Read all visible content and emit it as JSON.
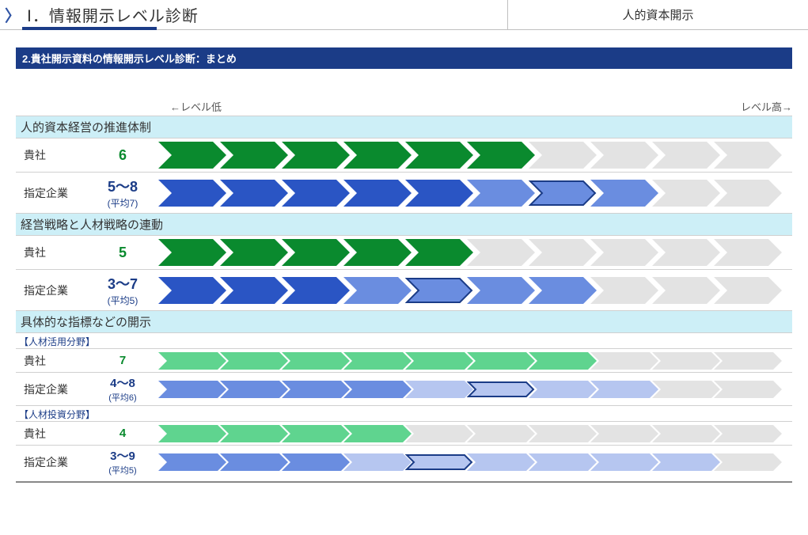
{
  "header": {
    "title": "Ⅰ．情報開示レベル診断",
    "right": "人的資本開示"
  },
  "subheader": "2.貴社開示資料の情報開示レベル診断：まとめ",
  "scale": {
    "low": "←レベル低",
    "high": "レベル高→"
  },
  "labels": {
    "own": "貴社",
    "peer": "指定企業"
  },
  "chart": {
    "segments": 10,
    "colors": {
      "own_value": "#0a8a2e",
      "peer_value": "#1b3c87",
      "green_dark": "#0a8a2e",
      "green_light": "#5fd48f",
      "blue_dark": "#2a55c4",
      "blue_mid": "#6a8de0",
      "blue_light": "#b6c6f0",
      "grey": "#e3e3e3",
      "outline": "#1b3c87"
    }
  },
  "sections": [
    {
      "title": "人的資本経営の推進体制",
      "rows": [
        {
          "kind": "own",
          "value": "6",
          "fill": 6,
          "total": 10,
          "style": "big",
          "palette": "green_dark"
        },
        {
          "kind": "peer",
          "value": "5～8",
          "avg": "(平均7)",
          "min": 5,
          "max": 8,
          "mark": 7,
          "total": 10,
          "style": "big"
        }
      ]
    },
    {
      "title": "経営戦略と人材戦略の連動",
      "rows": [
        {
          "kind": "own",
          "value": "5",
          "fill": 5,
          "total": 10,
          "style": "big",
          "palette": "green_dark"
        },
        {
          "kind": "peer",
          "value": "3～7",
          "avg": "(平均5)",
          "min": 3,
          "max": 7,
          "mark": 5,
          "total": 10,
          "style": "big"
        }
      ]
    },
    {
      "title": "具体的な指標などの開示",
      "groups": [
        {
          "subtitle": "【人材活用分野】",
          "rows": [
            {
              "kind": "own",
              "value": "7",
              "fill": 7,
              "total": 10,
              "style": "small",
              "palette": "green_light"
            },
            {
              "kind": "peer",
              "value": "4～8",
              "avg": "(平均6)",
              "min": 4,
              "max": 8,
              "mark": 6,
              "total": 10,
              "style": "small",
              "palette": "light"
            }
          ]
        },
        {
          "subtitle": "【人材投資分野】",
          "rows": [
            {
              "kind": "own",
              "value": "4",
              "fill": 4,
              "total": 10,
              "style": "small",
              "palette": "green_light"
            },
            {
              "kind": "peer",
              "value": "3～9",
              "avg": "(平均5)",
              "min": 3,
              "max": 9,
              "mark": 5,
              "total": 10,
              "style": "small",
              "palette": "light"
            }
          ]
        }
      ]
    }
  ]
}
